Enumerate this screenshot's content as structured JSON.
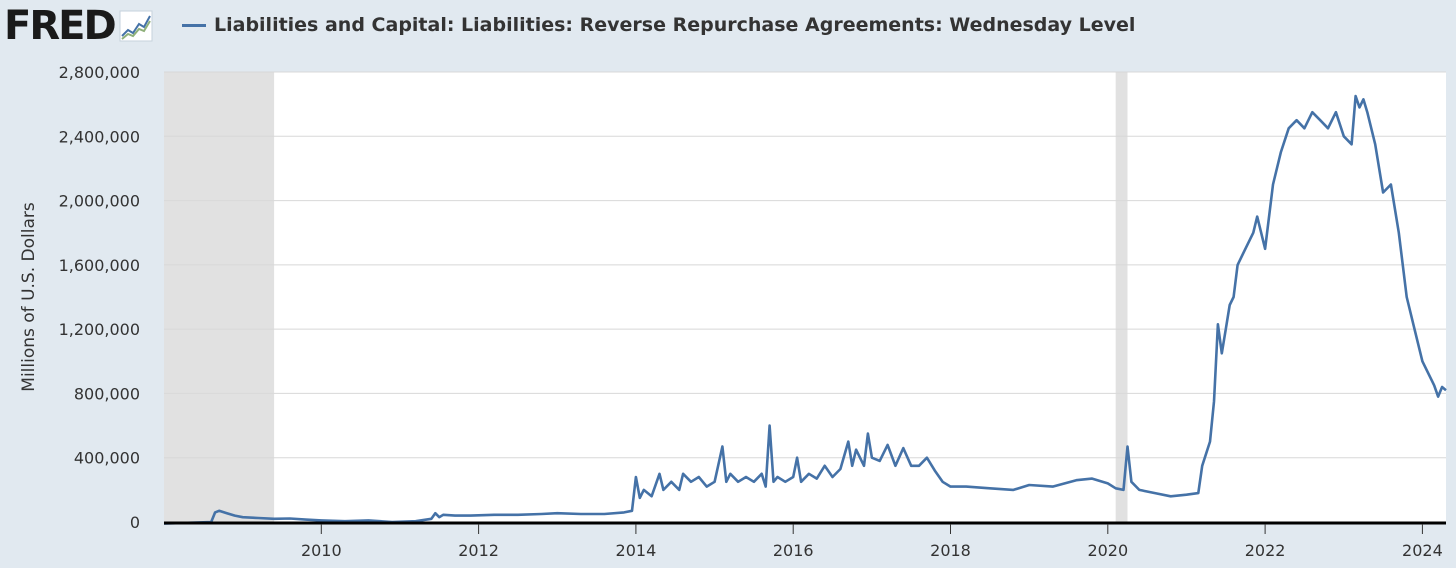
{
  "header": {
    "logo_text": "FRED"
  },
  "colors": {
    "background": "#e1e9f0",
    "plot_background": "#ffffff",
    "series": "#4572a7",
    "recession": "#e1e1e1",
    "grid": "#d8d8d8",
    "axis": "#000000"
  },
  "chart_data": {
    "type": "line",
    "title": "",
    "xlabel": "",
    "ylabel": "Millions of U.S. Dollars",
    "xlim": [
      2008.0,
      2024.3
    ],
    "ylim": [
      0,
      2800000
    ],
    "grid": true,
    "legend_position": "top",
    "x_ticks": [
      2010,
      2012,
      2014,
      2016,
      2018,
      2020,
      2022,
      2024
    ],
    "x_tick_labels": [
      "2010",
      "2012",
      "2014",
      "2016",
      "2018",
      "2020",
      "2022",
      "2024"
    ],
    "y_ticks": [
      0,
      400000,
      800000,
      1200000,
      1600000,
      2000000,
      2400000,
      2800000
    ],
    "y_tick_labels": [
      "0",
      "400,000",
      "800,000",
      "1,200,000",
      "1,600,000",
      "2,000,000",
      "2,400,000",
      "2,800,000"
    ],
    "recessions": [
      [
        2008.0,
        2009.4
      ],
      [
        2020.1,
        2020.25
      ]
    ],
    "series": [
      {
        "name": "Liabilities and Capital: Liabilities: Reverse Repurchase Agreements: Wednesday Level",
        "x": [
          2008.0,
          2008.3,
          2008.6,
          2008.65,
          2008.7,
          2008.8,
          2008.9,
          2009.0,
          2009.2,
          2009.4,
          2009.6,
          2009.8,
          2010.0,
          2010.3,
          2010.6,
          2010.9,
          2011.2,
          2011.4,
          2011.45,
          2011.5,
          2011.55,
          2011.7,
          2011.9,
          2012.2,
          2012.5,
          2012.8,
          2013.0,
          2013.3,
          2013.6,
          2013.85,
          2013.95,
          2014.0,
          2014.05,
          2014.1,
          2014.2,
          2014.3,
          2014.35,
          2014.45,
          2014.55,
          2014.6,
          2014.7,
          2014.8,
          2014.9,
          2015.0,
          2015.1,
          2015.15,
          2015.2,
          2015.3,
          2015.4,
          2015.5,
          2015.6,
          2015.65,
          2015.7,
          2015.75,
          2015.8,
          2015.9,
          2016.0,
          2016.05,
          2016.1,
          2016.2,
          2016.3,
          2016.4,
          2016.5,
          2016.6,
          2016.7,
          2016.75,
          2016.8,
          2016.9,
          2016.95,
          2017.0,
          2017.1,
          2017.2,
          2017.3,
          2017.4,
          2017.5,
          2017.6,
          2017.7,
          2017.8,
          2017.9,
          2018.0,
          2018.2,
          2018.5,
          2018.8,
          2019.0,
          2019.3,
          2019.6,
          2019.8,
          2020.0,
          2020.1,
          2020.2,
          2020.25,
          2020.3,
          2020.4,
          2020.6,
          2020.8,
          2021.0,
          2021.15,
          2021.2,
          2021.3,
          2021.35,
          2021.4,
          2021.45,
          2021.5,
          2021.55,
          2021.6,
          2021.65,
          2021.75,
          2021.85,
          2021.9,
          2022.0,
          2022.1,
          2022.2,
          2022.3,
          2022.4,
          2022.5,
          2022.6,
          2022.7,
          2022.8,
          2022.9,
          2023.0,
          2023.1,
          2023.15,
          2023.2,
          2023.25,
          2023.3,
          2023.4,
          2023.5,
          2023.6,
          2023.7,
          2023.8,
          2023.9,
          2024.0,
          2024.1,
          2024.15,
          2024.2,
          2024.25,
          2024.3
        ],
        "values": [
          -10000,
          -5000,
          0,
          60000,
          70000,
          55000,
          40000,
          30000,
          25000,
          20000,
          22000,
          15000,
          10000,
          5000,
          10000,
          0,
          5000,
          20000,
          55000,
          30000,
          45000,
          40000,
          40000,
          45000,
          45000,
          50000,
          55000,
          50000,
          50000,
          60000,
          70000,
          280000,
          150000,
          200000,
          160000,
          300000,
          200000,
          250000,
          200000,
          300000,
          250000,
          280000,
          220000,
          250000,
          470000,
          250000,
          300000,
          250000,
          280000,
          250000,
          300000,
          220000,
          600000,
          250000,
          280000,
          250000,
          280000,
          400000,
          250000,
          300000,
          270000,
          350000,
          280000,
          330000,
          500000,
          350000,
          450000,
          350000,
          550000,
          400000,
          380000,
          480000,
          350000,
          460000,
          350000,
          350000,
          400000,
          320000,
          250000,
          220000,
          220000,
          210000,
          200000,
          230000,
          220000,
          260000,
          270000,
          240000,
          210000,
          200000,
          470000,
          250000,
          200000,
          180000,
          160000,
          170000,
          180000,
          350000,
          500000,
          750000,
          1230000,
          1050000,
          1200000,
          1350000,
          1400000,
          1600000,
          1700000,
          1800000,
          1900000,
          1700000,
          2100000,
          2300000,
          2450000,
          2500000,
          2450000,
          2550000,
          2500000,
          2450000,
          2550000,
          2400000,
          2350000,
          2650000,
          2580000,
          2630000,
          2550000,
          2350000,
          2050000,
          2100000,
          1800000,
          1400000,
          1200000,
          1000000,
          900000,
          850000,
          780000,
          840000,
          820000
        ]
      }
    ]
  }
}
